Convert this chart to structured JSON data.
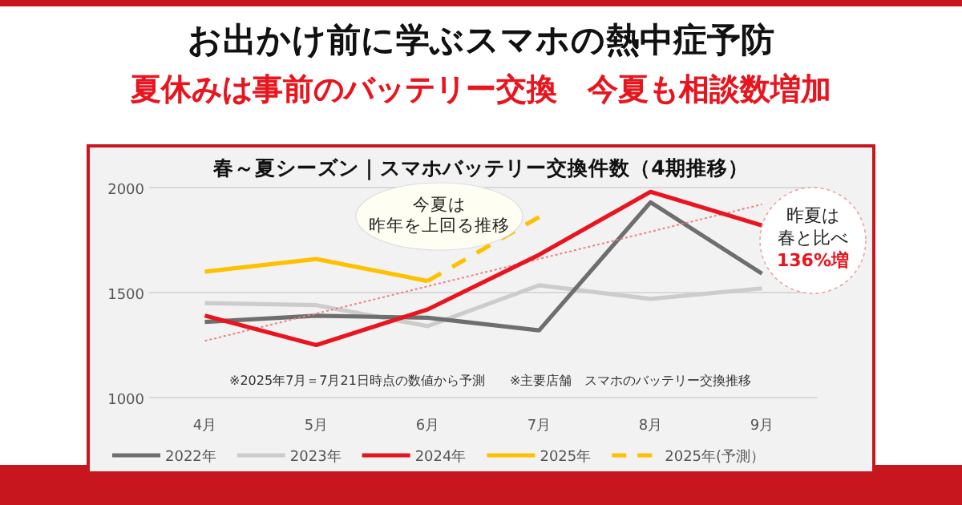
{
  "chart_data": {
    "type": "line",
    "title": "春～夏シーズン｜スマホバッテリー交換件数（4期推移）",
    "categories": [
      "4月",
      "5月",
      "6月",
      "7月",
      "8月",
      "9月"
    ],
    "series": [
      {
        "name": "2022年",
        "color": "#6e6e6e",
        "values": [
          1360,
          1390,
          1380,
          1320,
          1930,
          1590
        ]
      },
      {
        "name": "2023年",
        "color": "#cccccc",
        "values": [
          1450,
          1440,
          1340,
          1535,
          1470,
          1520
        ]
      },
      {
        "name": "2024年",
        "color": "#e8141e",
        "values": [
          1390,
          1250,
          1420,
          1680,
          1980,
          1820
        ]
      },
      {
        "name": "2025年",
        "color": "#ffc000",
        "values": [
          1600,
          1660,
          1555,
          null,
          null,
          null
        ]
      },
      {
        "name": "2025年(予測）",
        "color": "#ffc000",
        "line_style": "dashed",
        "values": [
          null,
          null,
          1555,
          1860,
          null,
          null
        ]
      },
      {
        "type": "line",
        "color": "#f08080",
        "line_style": "dotted",
        "x": [
          "4月",
          "9月"
        ],
        "values": [
          1270,
          1920
        ]
      }
    ],
    "ylim": [
      1000,
      2000
    ],
    "yticks": [
      1000,
      1500,
      2000
    ],
    "grid": "y",
    "legend": "bottom",
    "line_style": "solid",
    "marker": "none",
    "annotations": [
      "お出かけ前に学ぶスマホの熱中症予防",
      "夏休みは事前のバッテリー交換　今夏も相談数増加",
      "今夏は",
      "昨年を上回る推移",
      "昨夏は",
      "春と比べ",
      "136%増",
      "※2025年7月＝7月21日時点の数値から予測",
      "※主要店舗　スマホのバッテリー交換推移"
    ]
  }
}
